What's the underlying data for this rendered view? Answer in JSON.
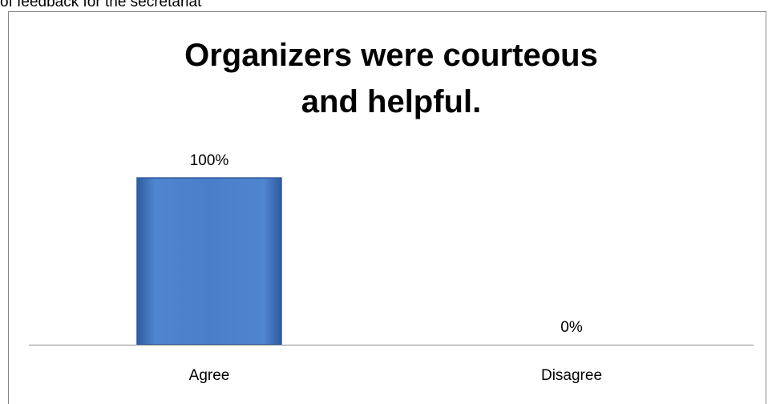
{
  "page_header_text": "of feedback for the secretariat",
  "chart_data": {
    "type": "bar",
    "title_lines": [
      "Organizers were courteous",
      "and helpful."
    ],
    "categories": [
      "Agree",
      "Disagree"
    ],
    "values": [
      100,
      0
    ],
    "data_labels": [
      "100%",
      "0%"
    ],
    "ylim": [
      0,
      100
    ],
    "grid": false,
    "legend": "none",
    "colors": {
      "bar_fill": "#4a7ec8",
      "bar_edge": "#2d5a9a",
      "axis": "#888888",
      "border": "#868686"
    }
  }
}
